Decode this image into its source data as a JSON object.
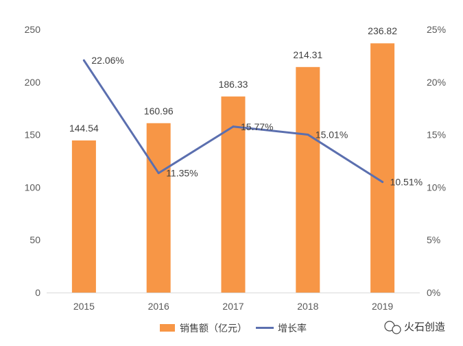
{
  "chart_data": {
    "type": "bar",
    "categories": [
      "2015",
      "2016",
      "2017",
      "2018",
      "2019"
    ],
    "series": [
      {
        "name": "销售额（亿元）",
        "type": "bar",
        "axis": "left",
        "values": [
          144.54,
          160.96,
          186.33,
          214.31,
          236.82
        ],
        "labels": [
          "144.54",
          "160.96",
          "186.33",
          "214.31",
          "236.82"
        ],
        "color": "#F79646"
      },
      {
        "name": "增长率",
        "type": "line",
        "axis": "right",
        "values": [
          22.06,
          11.35,
          15.77,
          15.01,
          10.51
        ],
        "labels": [
          "22.06%",
          "11.35%",
          "15.77%",
          "15.01%",
          "10.51%"
        ],
        "color": "#5B6FAF"
      }
    ],
    "y_left": {
      "ylim": [
        0,
        250
      ],
      "ticks": [
        "0",
        "50",
        "100",
        "150",
        "200",
        "250"
      ]
    },
    "y_right": {
      "ylim": [
        0,
        25
      ],
      "ticks": [
        "0%",
        "5%",
        "10%",
        "15%",
        "20%",
        "25%"
      ]
    },
    "grid": false,
    "legend": {
      "position": "bottom",
      "items": [
        "销售额（亿元）",
        "增长率"
      ]
    }
  },
  "watermark": {
    "text": "火石创造",
    "icon": "wechat-icon"
  }
}
